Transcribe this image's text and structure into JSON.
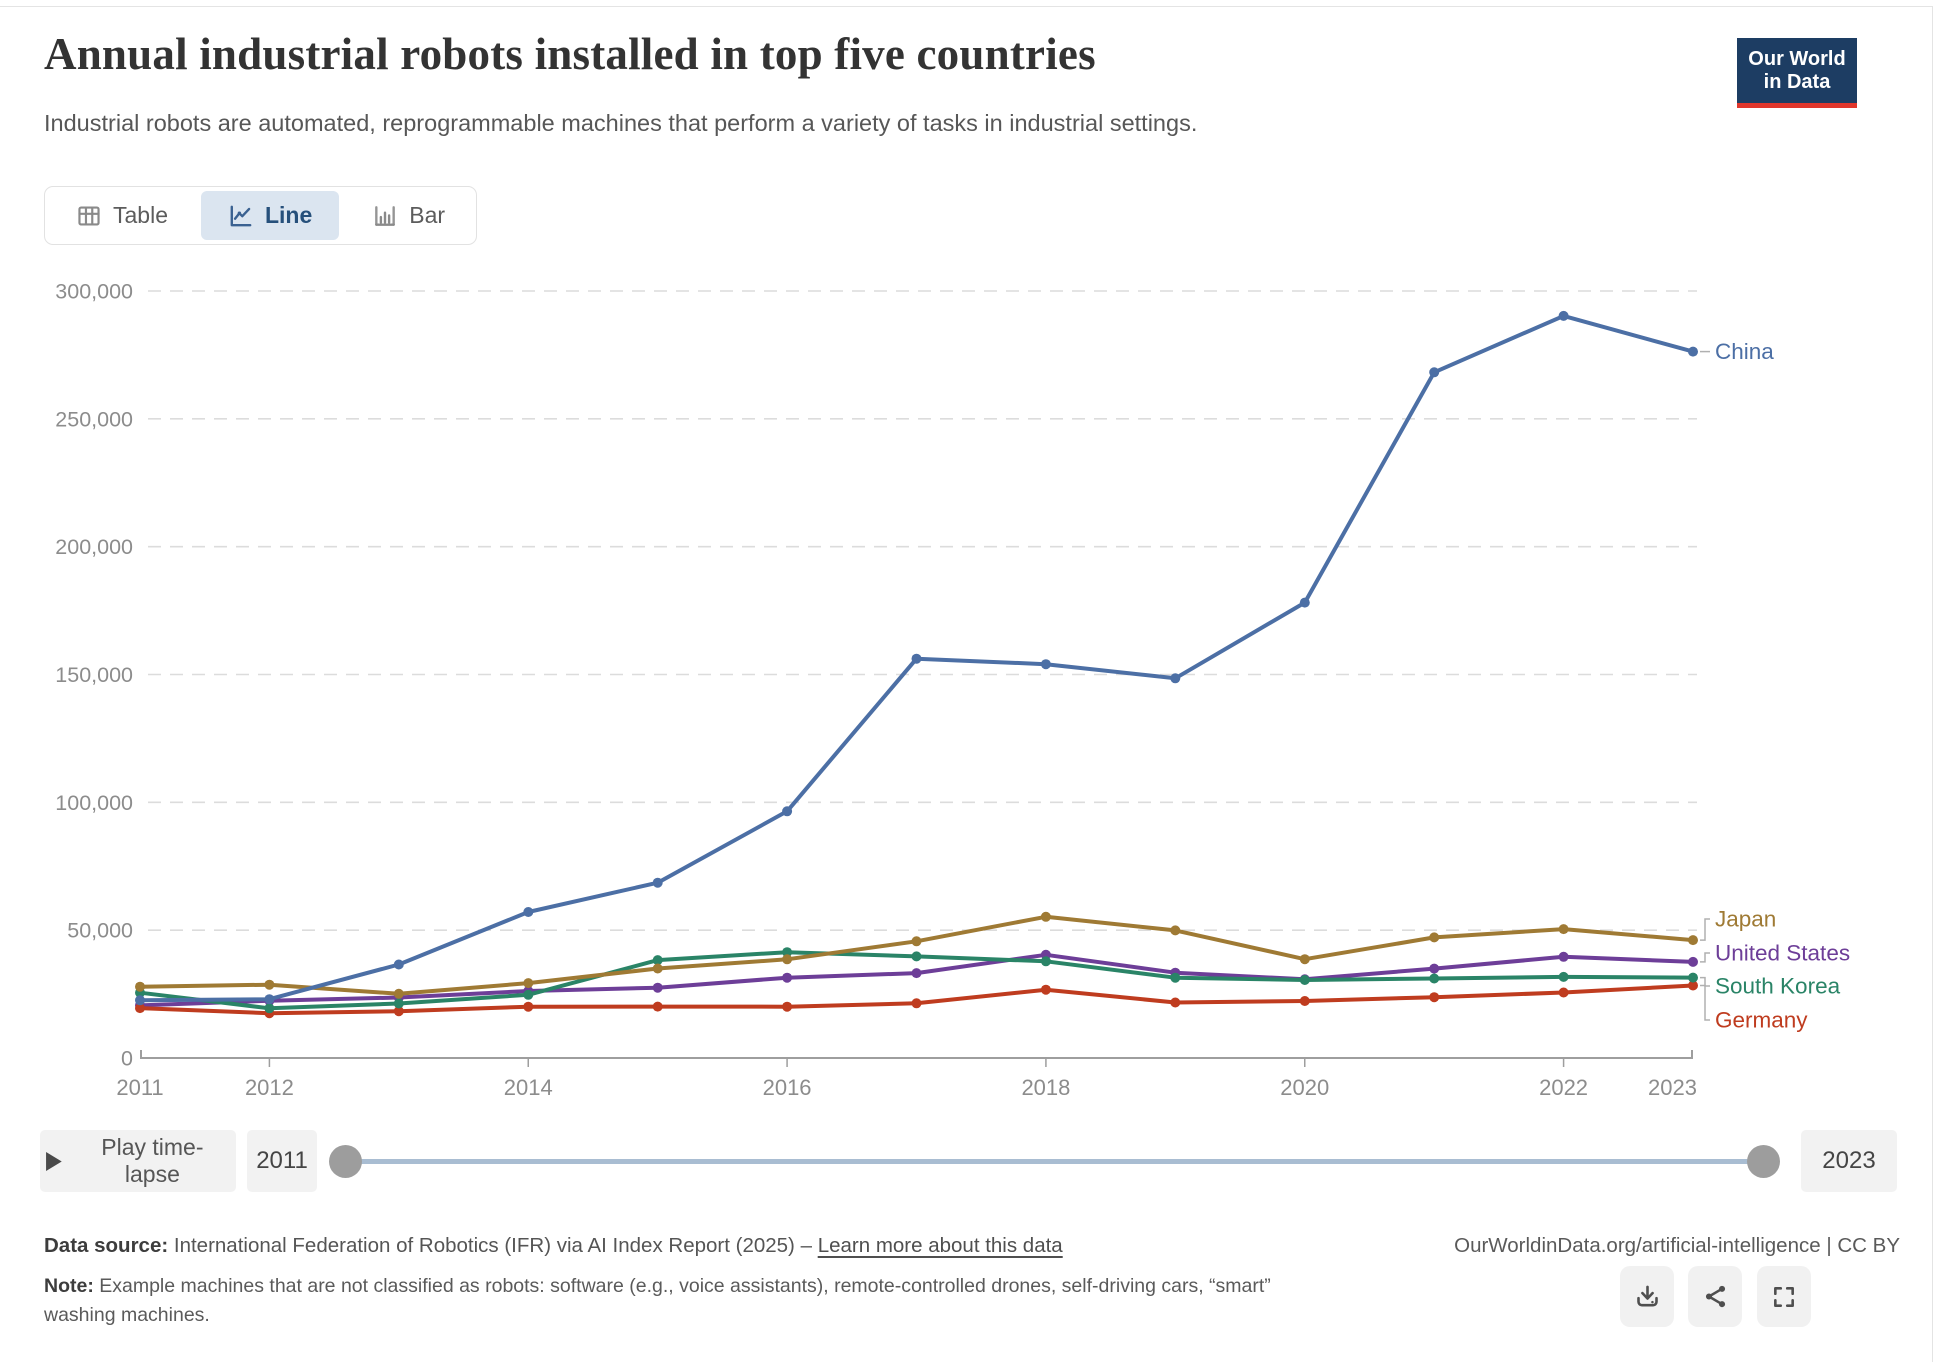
{
  "header": {
    "title": "Annual industrial robots installed in top five countries",
    "subtitle": "Industrial robots are automated, reprogrammable machines that perform a variety of tasks in industrial settings.",
    "logo": {
      "line1": "Our World",
      "line2": "in Data"
    }
  },
  "tabs": [
    {
      "label": "Table",
      "active": false
    },
    {
      "label": "Line",
      "active": true
    },
    {
      "label": "Bar",
      "active": false
    }
  ],
  "chart_data": {
    "type": "line",
    "x": [
      2011,
      2012,
      2013,
      2014,
      2015,
      2016,
      2017,
      2018,
      2019,
      2020,
      2021,
      2022,
      2023
    ],
    "x_tick_labels": [
      2011,
      2012,
      2014,
      2016,
      2018,
      2020,
      2022,
      2023
    ],
    "y_ticks": [
      0,
      50000,
      100000,
      150000,
      200000,
      250000,
      300000
    ],
    "ylim": [
      0,
      300000
    ],
    "grid": "horizontal dashed",
    "legend_position": "end-of-line labels at right",
    "series": [
      {
        "name": "China",
        "color": "#4c6fa5",
        "values": [
          22577,
          22987,
          36560,
          57096,
          68556,
          96500,
          156176,
          154032,
          148500,
          178132,
          268195,
          290258,
          276288
        ]
      },
      {
        "name": "Japan",
        "color": "#9f7a34",
        "values": [
          27894,
          28680,
          25110,
          29297,
          35023,
          38586,
          45647,
          55240,
          49908,
          38653,
          47182,
          50413,
          46106
        ]
      },
      {
        "name": "United States",
        "color": "#6d3e98",
        "values": [
          20555,
          22414,
          23679,
          26200,
          27504,
          31404,
          33192,
          40373,
          33378,
          30787,
          34987,
          39576,
          37587
        ]
      },
      {
        "name": "South Korea",
        "color": "#2a8467",
        "values": [
          25536,
          19424,
          21307,
          24721,
          38285,
          41373,
          39732,
          37807,
          31400,
          30506,
          31083,
          31716,
          31444
        ]
      },
      {
        "name": "Germany",
        "color": "#bf3c1f",
        "values": [
          19533,
          17528,
          18297,
          20051,
          20105,
          20074,
          21404,
          26723,
          21700,
          22300,
          23777,
          25636,
          28355
        ]
      }
    ]
  },
  "timeline": {
    "play_label": "Play time-lapse",
    "start_year": "2011",
    "end_year": "2023"
  },
  "footer": {
    "source_label": "Data source:",
    "source_text": " International Federation of Robotics (IFR) via AI Index Report (2025) – ",
    "link_text": "Learn more about this data",
    "note_label": "Note:",
    "note_text": " Example machines that are not classified as robots: software (e.g., voice assistants), remote-controlled drones, self-driving cars, “smart” washing machines.",
    "attribution": "OurWorldinData.org/artificial-intelligence | CC BY"
  },
  "colors": {
    "accent_tab_bg": "#dbe5f0",
    "logo_bg": "#1d3d63",
    "logo_bar": "#e0362c",
    "slider_track": "#a9bdd2",
    "gridline": "#dcdcdc",
    "axis": "#9e9e9e",
    "tick_text": "#8c8c8c"
  }
}
